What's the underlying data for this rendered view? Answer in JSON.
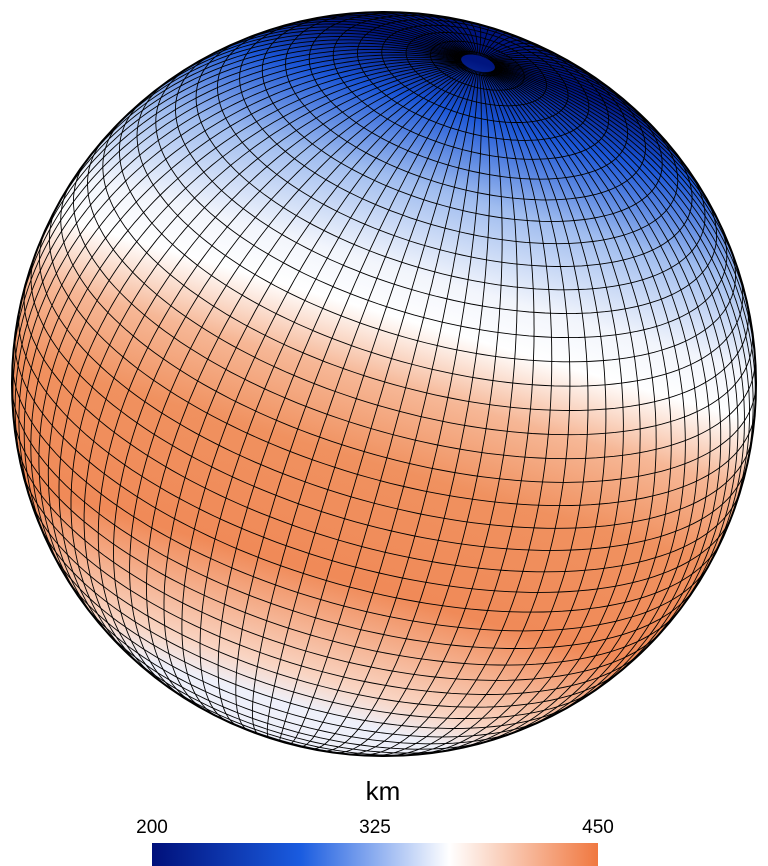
{
  "chart_data": {
    "type": "sphere-colormap",
    "colorbar": {
      "label": "km",
      "lim": [
        200,
        450
      ],
      "ticks": [
        200,
        325,
        450
      ],
      "colors": [
        "#00107a",
        "#1a5ce0",
        "#ffffff",
        "#f07840"
      ]
    }
  }
}
